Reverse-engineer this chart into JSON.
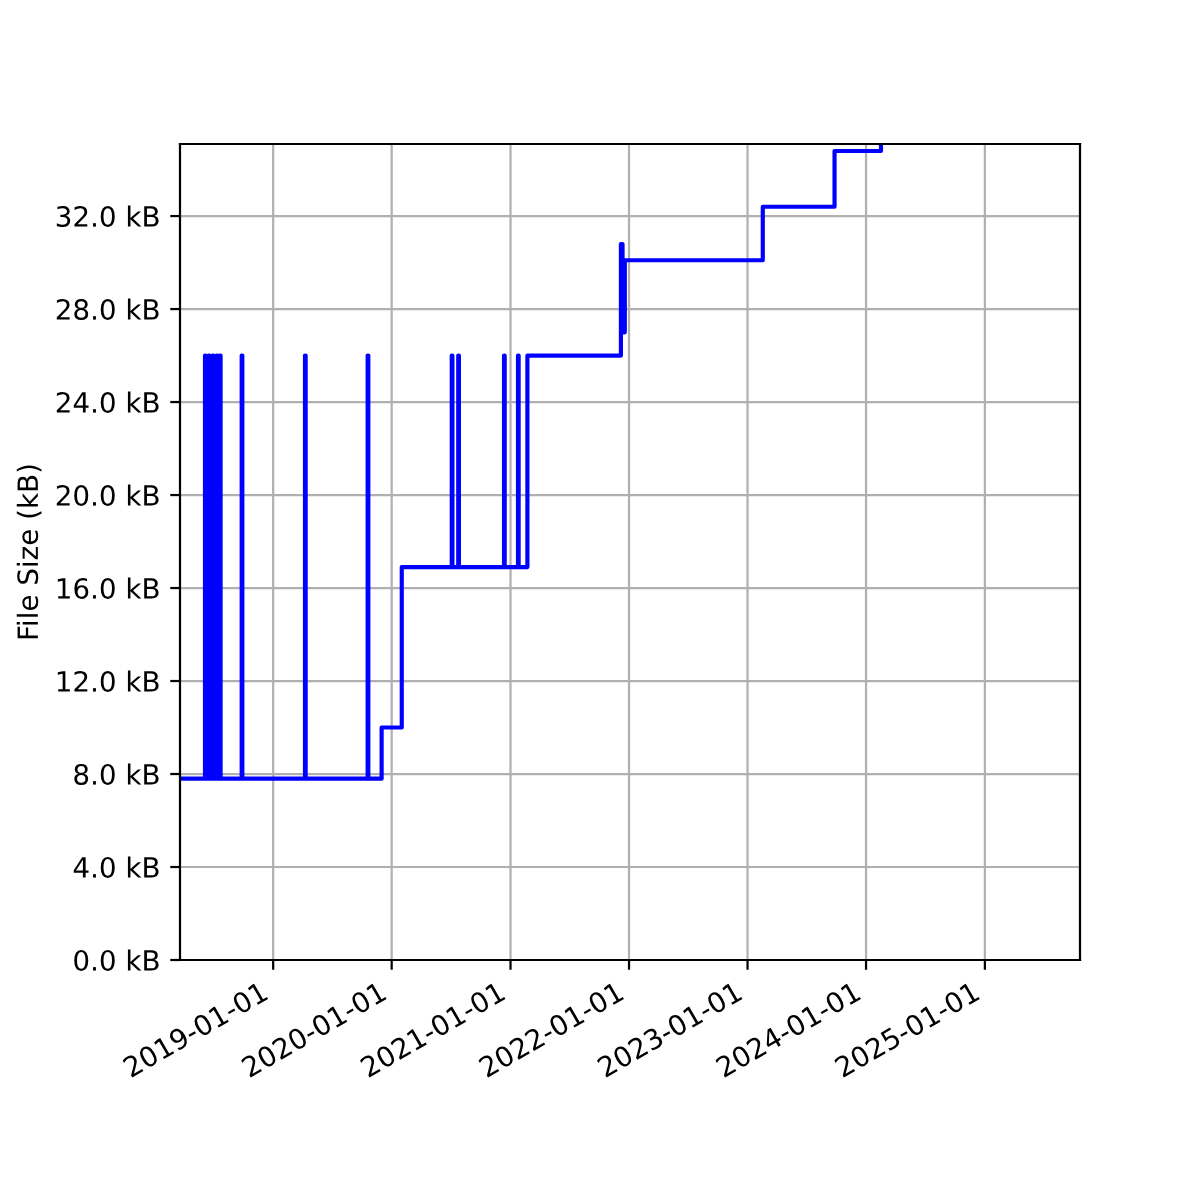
{
  "chart_data": {
    "type": "step",
    "ylabel": "File Size (kB)",
    "series": [
      {
        "color": "#0000ff",
        "x": [
          "2018-03-20",
          "2018-06-05",
          "2018-06-07",
          "2018-06-17",
          "2018-06-19",
          "2018-06-29",
          "2018-07-01",
          "2018-07-11",
          "2018-07-13",
          "2018-07-21",
          "2018-07-23",
          "2018-09-26",
          "2018-09-28",
          "2019-04-09",
          "2019-04-11",
          "2019-10-19",
          "2019-10-21",
          "2019-12-01",
          "2020-02-01",
          "2020-07-04",
          "2020-07-06",
          "2020-07-24",
          "2020-07-26",
          "2020-12-12",
          "2020-12-14",
          "2021-01-24",
          "2021-01-26",
          "2021-02-22",
          "2021-12-07",
          "2021-12-12",
          "2021-12-19",
          "2023-02-17",
          "2023-09-26",
          "2024-02-16"
        ],
        "values": [
          7.8,
          26.0,
          7.8,
          26.0,
          7.8,
          26.0,
          7.8,
          26.0,
          7.8,
          26.0,
          7.8,
          26.0,
          7.8,
          26.0,
          7.8,
          26.0,
          7.8,
          10.0,
          16.9,
          26.0,
          16.9,
          26.0,
          16.9,
          26.0,
          16.9,
          26.0,
          16.9,
          26.0,
          30.8,
          27.0,
          30.1,
          32.4,
          34.8,
          35.0
        ]
      }
    ],
    "xlim": [
      "2018-03-20",
      "2025-10-21"
    ],
    "xticks": [
      "2019-01-01",
      "2020-01-01",
      "2021-01-01",
      "2022-01-01",
      "2023-01-01",
      "2024-01-01",
      "2025-01-01"
    ],
    "ylim": [
      0,
      35.1
    ],
    "yticks": [
      {
        "value": 0,
        "label": "0.0 kB"
      },
      {
        "value": 4,
        "label": "4.0 kB"
      },
      {
        "value": 8,
        "label": "8.0 kB"
      },
      {
        "value": 12,
        "label": "12.0 kB"
      },
      {
        "value": 16,
        "label": "16.0 kB"
      },
      {
        "value": 20,
        "label": "20.0 kB"
      },
      {
        "value": 24,
        "label": "24.0 kB"
      },
      {
        "value": 28,
        "label": "28.0 kB"
      },
      {
        "value": 32,
        "label": "32.0 kB"
      }
    ],
    "grid": true
  }
}
